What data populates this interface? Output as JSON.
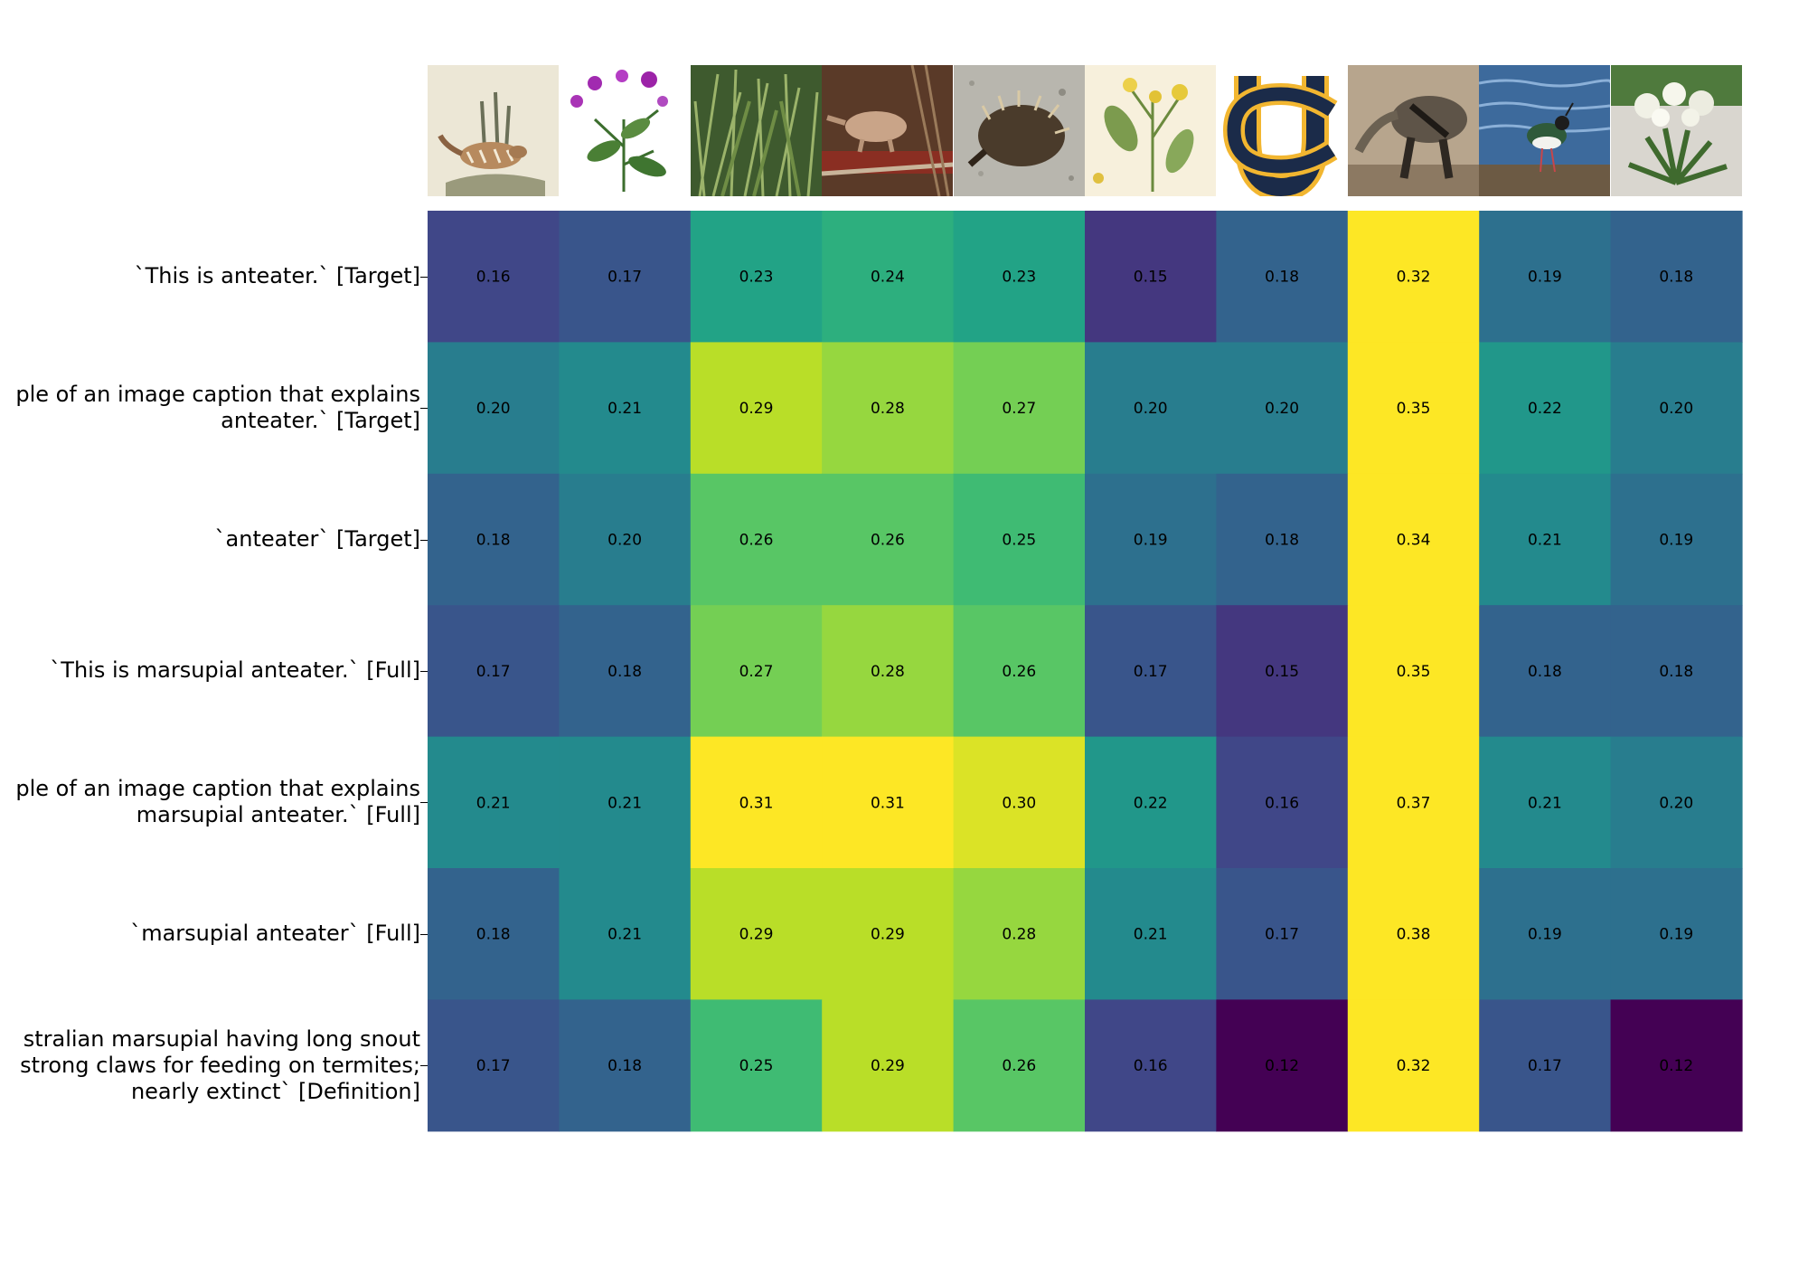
{
  "chart_data": {
    "type": "heatmap",
    "colormap": "viridis",
    "value_range": [
      0.12,
      0.31
    ],
    "rows": [
      {
        "label_lines": [
          "`This is anteater.` [Target]"
        ]
      },
      {
        "label_lines": [
          "ple of an image caption that explains",
          "anteater.` [Target]"
        ]
      },
      {
        "label_lines": [
          "`anteater` [Target]"
        ]
      },
      {
        "label_lines": [
          "`This is marsupial anteater.` [Full]"
        ]
      },
      {
        "label_lines": [
          "ple of an image caption that explains",
          "marsupial anteater.` [Full]"
        ]
      },
      {
        "label_lines": [
          "`marsupial anteater` [Full]"
        ]
      },
      {
        "label_lines": [
          "stralian marsupial having long snout",
          "strong claws for feeding on termites;",
          "nearly extinct` [Definition]"
        ]
      }
    ],
    "columns": [
      {
        "image": "numbat-illustration"
      },
      {
        "image": "purple-flower-plant"
      },
      {
        "image": "tall-grass"
      },
      {
        "image": "animal-on-forest-floor"
      },
      {
        "image": "echidna"
      },
      {
        "image": "botanical-yellow-flowers"
      },
      {
        "image": "uc-logo"
      },
      {
        "image": "giant-anteater"
      },
      {
        "image": "lapwing-bird-water"
      },
      {
        "image": "white-flowering-plant"
      }
    ],
    "values": [
      [
        0.16,
        0.17,
        0.23,
        0.24,
        0.23,
        0.15,
        0.18,
        0.32,
        0.19,
        0.18
      ],
      [
        0.2,
        0.21,
        0.29,
        0.28,
        0.27,
        0.2,
        0.2,
        0.35,
        0.22,
        0.2
      ],
      [
        0.18,
        0.2,
        0.26,
        0.26,
        0.25,
        0.19,
        0.18,
        0.34,
        0.21,
        0.19
      ],
      [
        0.17,
        0.18,
        0.27,
        0.28,
        0.26,
        0.17,
        0.15,
        0.35,
        0.18,
        0.18
      ],
      [
        0.21,
        0.21,
        0.31,
        0.31,
        0.3,
        0.22,
        0.16,
        0.37,
        0.21,
        0.2
      ],
      [
        0.18,
        0.21,
        0.29,
        0.29,
        0.28,
        0.21,
        0.17,
        0.38,
        0.19,
        0.19
      ],
      [
        0.17,
        0.18,
        0.25,
        0.29,
        0.26,
        0.16,
        0.12,
        0.32,
        0.17,
        0.12
      ]
    ],
    "cell_label_format": "2dp",
    "grid": false,
    "legend": "none"
  }
}
